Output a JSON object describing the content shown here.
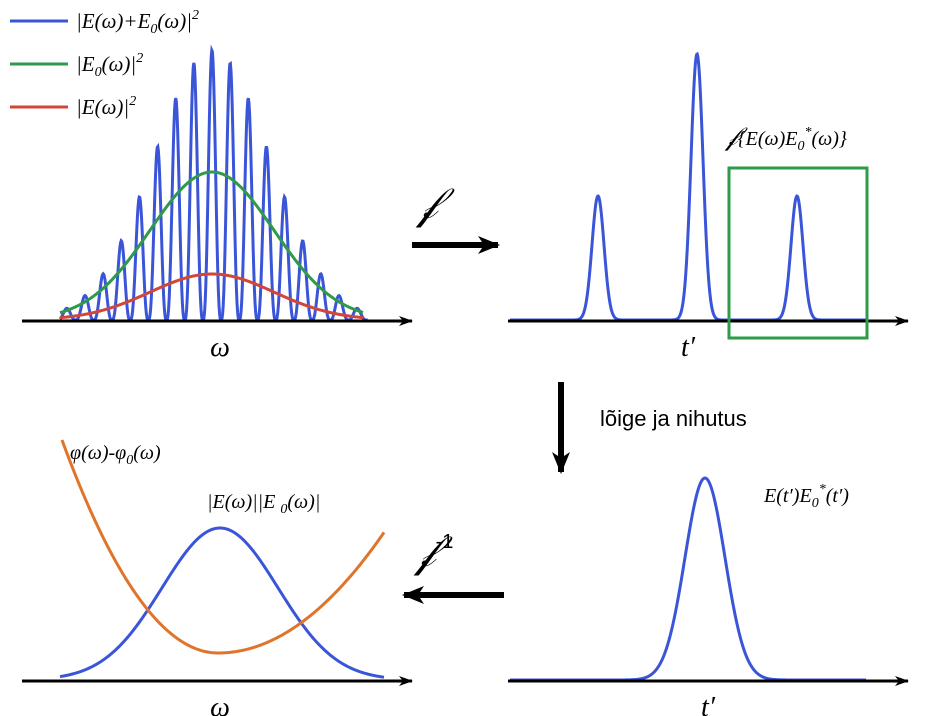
{
  "legend": {
    "items": [
      {
        "color": "#3b55d9",
        "base": "|E(ω)+E",
        "sub": "0",
        "tail": "(ω)|",
        "sup": "2"
      },
      {
        "color": "#2e9a4a",
        "base": "|E",
        "sub": "0",
        "tail": "(ω)|",
        "sup": "2"
      },
      {
        "color": "#d0473a",
        "base": "|E(ω)|",
        "sub": "",
        "tail": "",
        "sup": "2"
      }
    ]
  },
  "colors": {
    "blue": "#3b55d9",
    "green": "#2e9a4a",
    "red": "#d0473a",
    "orange": "#e0742a",
    "axis": "#000000"
  },
  "panels": {
    "top_left": {
      "axis_label": "ω"
    },
    "top_right": {
      "axis_label": "t′",
      "annotation": {
        "script": "𝒻",
        "base": "{E(ω)E",
        "sub": "0",
        "sup": "*",
        "tail": "(ω)}"
      }
    },
    "bottom_right": {
      "axis_label": "t′",
      "annotation": {
        "base": "E(t′)E",
        "sub": "0",
        "sup": "*",
        "tail": "(t′)"
      }
    },
    "bottom_left": {
      "axis_label": "ω",
      "phase_label": {
        "a": "φ(ω)-φ",
        "sub": "0",
        "b": "(ω)"
      },
      "amp_label": {
        "a": "|E(ω)||E ",
        "sub": "0",
        "b": "(ω)|"
      }
    }
  },
  "arrows": {
    "fourier": {
      "symbol": "𝒻"
    },
    "crop_shift": {
      "label": "lõige ja nihutus"
    },
    "inverse_fourier": {
      "symbol": "𝒻",
      "sup": "-1"
    }
  }
}
